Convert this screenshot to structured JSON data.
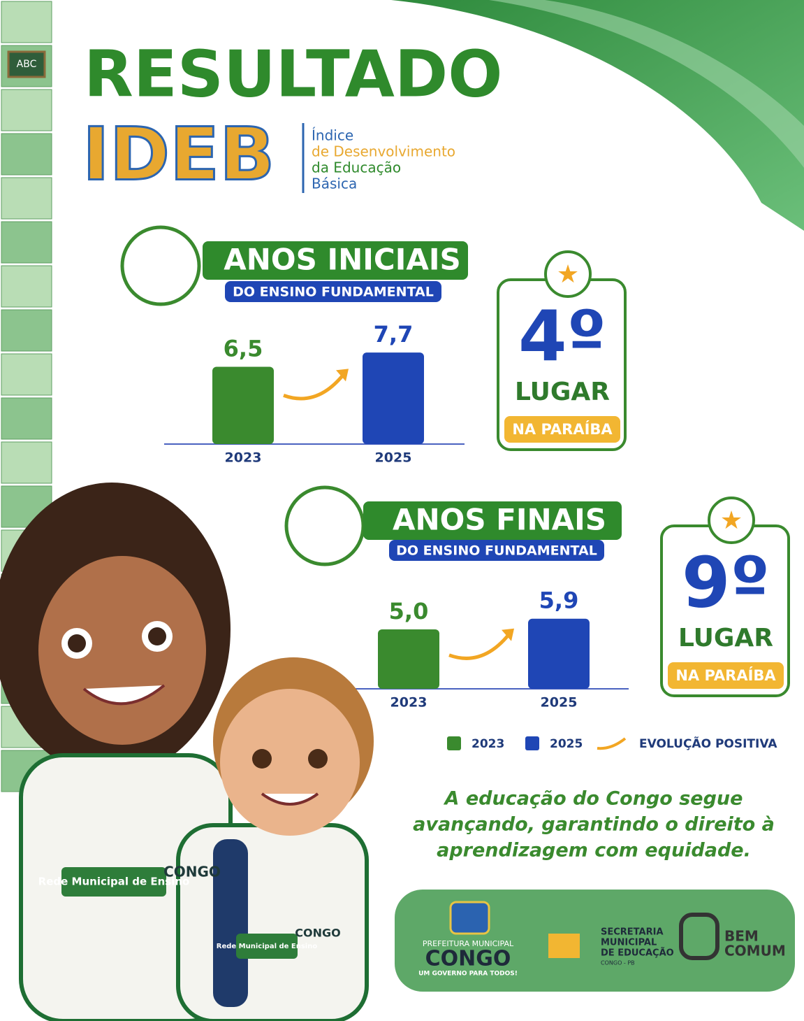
{
  "header": {
    "title": "RESULTADO",
    "brand": "IDEB",
    "subtitle_lines": [
      "Índice",
      "de Desenvolvimento",
      "da Educação",
      "Básica"
    ]
  },
  "sidebar": {
    "chalkboard": "ABC"
  },
  "sections": [
    {
      "title": "ANOS INICIAIS",
      "subtitle": "DO ENSINO FUNDAMENTAL",
      "categories": [
        "2023",
        "2025"
      ],
      "values": [
        6.5,
        7.7
      ],
      "value_labels": [
        "6,5",
        "7,7"
      ],
      "rank": "4º",
      "rank_word": "LUGAR",
      "rank_scope": "NA PARAÍBA"
    },
    {
      "title": "ANOS FINAIS",
      "subtitle": "DO ENSINO FUNDAMENTAL",
      "categories": [
        "2023",
        "2025"
      ],
      "values": [
        5.0,
        5.9
      ],
      "value_labels": [
        "5,0",
        "5,9"
      ],
      "rank": "9º",
      "rank_word": "LUGAR",
      "rank_scope": "NA PARAÍBA"
    }
  ],
  "legend": [
    {
      "name": "2023",
      "color": "#3a8a2e"
    },
    {
      "name": "2025",
      "color": "#1f46b5"
    },
    {
      "name": "EVOLUÇÃO POSITIVA",
      "color": "#f2a623"
    }
  ],
  "message_lines": [
    "A educação do Congo segue",
    "avançando, garantindo o direito à",
    "aprendizagem com equidade."
  ],
  "illustration": {
    "shirt_label": "Rede Municipal de Ensino",
    "shirt_brand": "CONGO"
  },
  "footer": {
    "city_top": "PREFEITURA MUNICIPAL",
    "city": "CONGO",
    "city_slogan": "UM GOVERNO PARA TODOS!",
    "secretaria_lines": [
      "SECRETARIA",
      "MUNICIPAL",
      "DE EDUCAÇÃO"
    ],
    "secretaria_place": "CONGO - PB",
    "partner_lines": [
      "BEM",
      "COMUM"
    ]
  }
}
